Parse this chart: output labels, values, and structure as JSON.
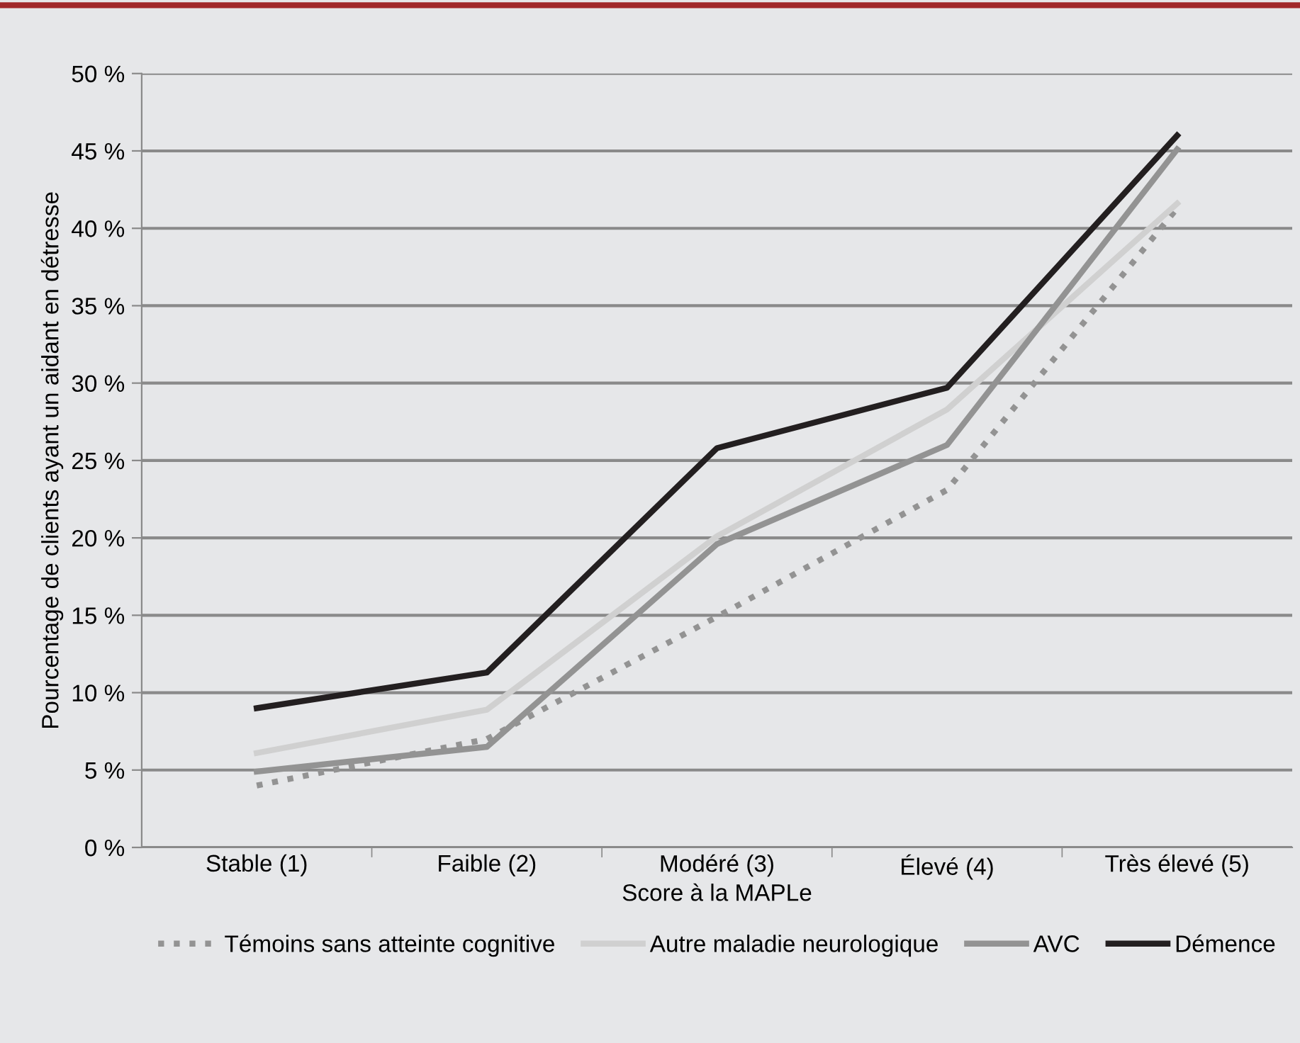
{
  "chart_data": {
    "type": "line",
    "xlabel": "Score à la MAPLe",
    "ylabel": "Pourcentage de clients ayant un aidant en détresse",
    "categories": [
      "Stable (1)",
      "Faible (2)",
      "Modéré (3)",
      "Élevé (4)",
      "Très élevé (5)"
    ],
    "series": [
      {
        "name": "Témoins sans atteinte cognitive",
        "color": "#939393",
        "line_style": "dotted",
        "values": [
          4.0,
          7.0,
          14.9,
          23.1,
          41.3
        ]
      },
      {
        "name": "Autre maladie neurologique",
        "color": "#d0d0d0",
        "values": [
          6.1,
          8.9,
          20.1,
          28.3,
          41.6
        ]
      },
      {
        "name": "AVC",
        "color": "#939393",
        "values": [
          4.9,
          6.5,
          19.6,
          26.0,
          45.1
        ]
      },
      {
        "name": "Démence",
        "color": "#231f20",
        "values": [
          9.0,
          11.3,
          25.8,
          29.7,
          46.0
        ]
      }
    ],
    "ylim": [
      0,
      50
    ],
    "yticks": [
      {
        "value": 0,
        "label": "0 %"
      },
      {
        "value": 5,
        "label": "5 %"
      },
      {
        "value": 10,
        "label": "10 %"
      },
      {
        "value": 15,
        "label": "15 %"
      },
      {
        "value": 20,
        "label": "20 %"
      },
      {
        "value": 25,
        "label": "25 %"
      },
      {
        "value": 30,
        "label": "30 %"
      },
      {
        "value": 35,
        "label": "35 %"
      },
      {
        "value": 40,
        "label": "40 %"
      },
      {
        "value": 45,
        "label": "45 %"
      },
      {
        "value": 50,
        "label": "50 %"
      }
    ],
    "grid": "y",
    "legend": "bottom",
    "marker": "none"
  }
}
